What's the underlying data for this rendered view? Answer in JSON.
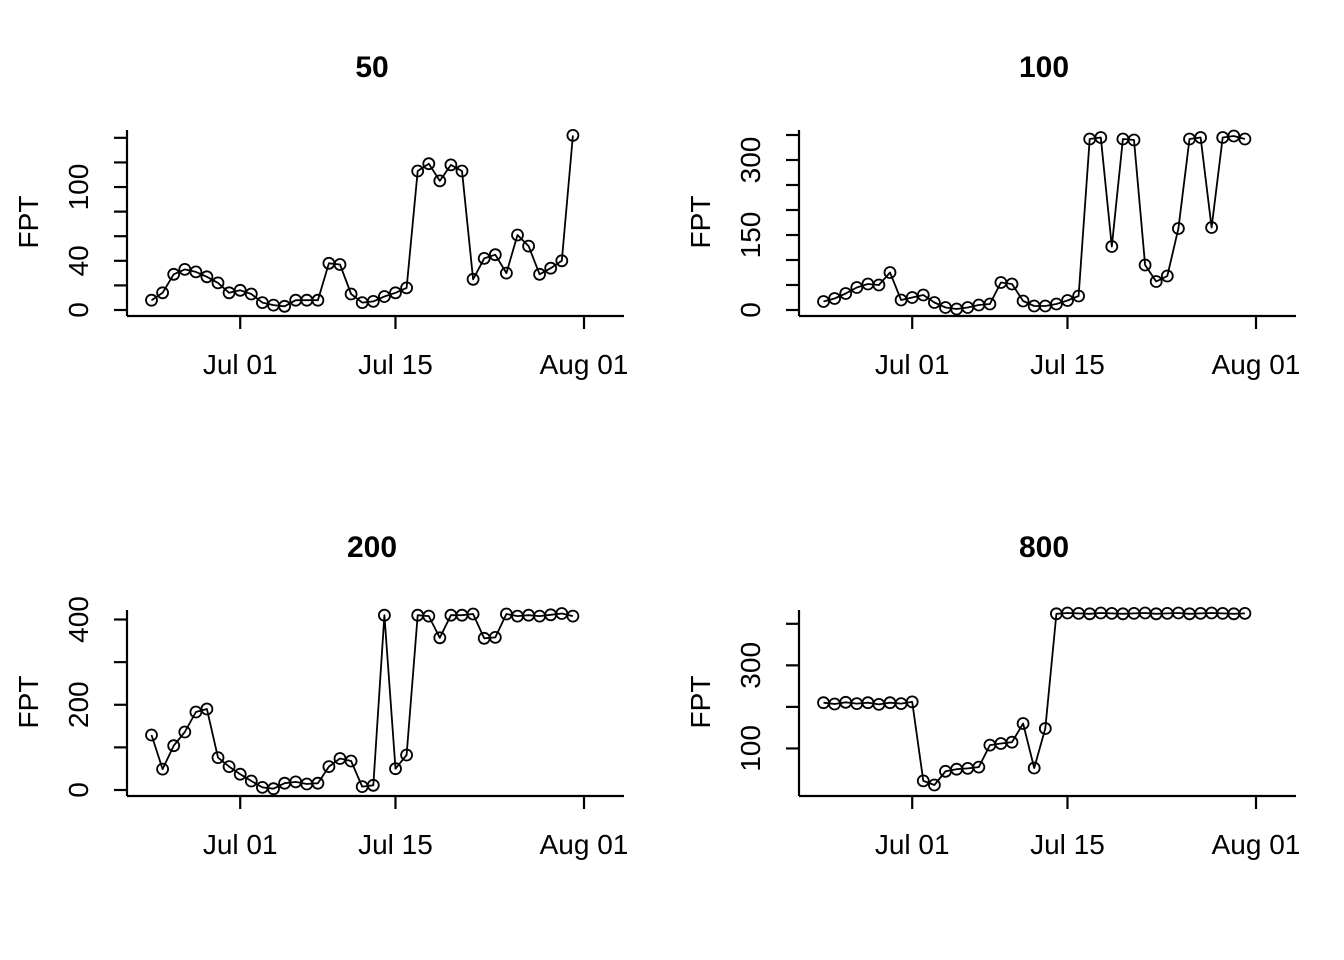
{
  "figure": {
    "background": "#ffffff",
    "ink_color": "#000000",
    "layout": "2x2-grid",
    "shared_ylabel": "FPT"
  },
  "chart_data": [
    {
      "type": "line",
      "title": "50",
      "ylabel": "FPT",
      "marker": "open-circle",
      "line_style": "solid",
      "x_axis": {
        "tick_labels": [
          "Jul 01",
          "Jul 15",
          "Aug 01"
        ],
        "tick_days": [
          8,
          22,
          39
        ],
        "points_interval": "daily",
        "first_point_day": 0
      },
      "y_axis": {
        "ylim": [
          0,
          148
        ],
        "ticks": [
          {
            "value": 0,
            "label": "0"
          },
          {
            "value": 20,
            "label": ""
          },
          {
            "value": 40,
            "label": "40"
          },
          {
            "value": 60,
            "label": ""
          },
          {
            "value": 80,
            "label": ""
          },
          {
            "value": 100,
            "label": "100"
          },
          {
            "value": 120,
            "label": ""
          },
          {
            "value": 140,
            "label": ""
          }
        ]
      },
      "values": [
        8,
        14,
        29,
        33,
        31,
        27,
        22,
        14,
        16,
        13,
        6,
        4,
        3,
        8,
        8,
        8,
        38,
        37,
        13,
        6,
        7,
        11,
        14,
        18,
        113,
        119,
        105,
        118,
        113,
        25,
        42,
        45,
        30,
        61,
        52,
        29,
        34,
        40,
        142
      ]
    },
    {
      "type": "line",
      "title": "100",
      "ylabel": "FPT",
      "marker": "open-circle",
      "line_style": "solid",
      "x_axis": {
        "tick_labels": [
          "Jul 01",
          "Jul 15",
          "Aug 01"
        ],
        "tick_days": [
          8,
          22,
          39
        ],
        "points_interval": "daily",
        "first_point_day": 0
      },
      "y_axis": {
        "ylim": [
          0,
          364
        ],
        "ticks": [
          {
            "value": 0,
            "label": "0"
          },
          {
            "value": 50,
            "label": ""
          },
          {
            "value": 100,
            "label": ""
          },
          {
            "value": 150,
            "label": "150"
          },
          {
            "value": 200,
            "label": ""
          },
          {
            "value": 250,
            "label": ""
          },
          {
            "value": 300,
            "label": "300"
          },
          {
            "value": 350,
            "label": ""
          }
        ]
      },
      "values": [
        17,
        23,
        33,
        45,
        52,
        50,
        75,
        20,
        25,
        30,
        15,
        5,
        2,
        5,
        10,
        12,
        55,
        52,
        18,
        8,
        8,
        12,
        19,
        28,
        342,
        345,
        127,
        342,
        340,
        90,
        57,
        68,
        163,
        342,
        345,
        165,
        345,
        348,
        342
      ]
    },
    {
      "type": "line",
      "title": "200",
      "ylabel": "FPT",
      "marker": "open-circle",
      "line_style": "solid",
      "x_axis": {
        "tick_labels": [
          "Jul 01",
          "Jul 15",
          "Aug 01"
        ],
        "tick_days": [
          8,
          22,
          39
        ],
        "points_interval": "daily",
        "first_point_day": 0
      },
      "y_axis": {
        "ylim": [
          0,
          427
        ],
        "ticks": [
          {
            "value": 0,
            "label": "0"
          },
          {
            "value": 100,
            "label": ""
          },
          {
            "value": 200,
            "label": "200"
          },
          {
            "value": 300,
            "label": ""
          },
          {
            "value": 400,
            "label": "400"
          }
        ]
      },
      "values": [
        129,
        49,
        104,
        136,
        183,
        190,
        76,
        55,
        37,
        21,
        6,
        3,
        16,
        19,
        14,
        16,
        55,
        74,
        68,
        8,
        11,
        410,
        50,
        82,
        410,
        408,
        357,
        410,
        410,
        413,
        356,
        358,
        413,
        408,
        410,
        408,
        411,
        414,
        408
      ]
    },
    {
      "type": "line",
      "title": "800",
      "ylabel": "FPT",
      "marker": "open-circle",
      "line_style": "solid",
      "x_axis": {
        "tick_labels": [
          "Jul 01",
          "Jul 15",
          "Aug 01"
        ],
        "tick_days": [
          8,
          22,
          39
        ],
        "points_interval": "daily",
        "first_point_day": 0
      },
      "y_axis": {
        "ylim": [
          0,
          438
        ],
        "ticks": [
          {
            "value": 100,
            "label": "100"
          },
          {
            "value": 200,
            "label": ""
          },
          {
            "value": 300,
            "label": "300"
          },
          {
            "value": 400,
            "label": ""
          }
        ]
      },
      "values": [
        210,
        207,
        211,
        208,
        210,
        206,
        210,
        208,
        212,
        22,
        12,
        45,
        50,
        52,
        55,
        108,
        112,
        115,
        160,
        53,
        148,
        424,
        426,
        425,
        424,
        426,
        425,
        424,
        425,
        426,
        424,
        425,
        426,
        424,
        425,
        426,
        425,
        424,
        425
      ]
    }
  ]
}
